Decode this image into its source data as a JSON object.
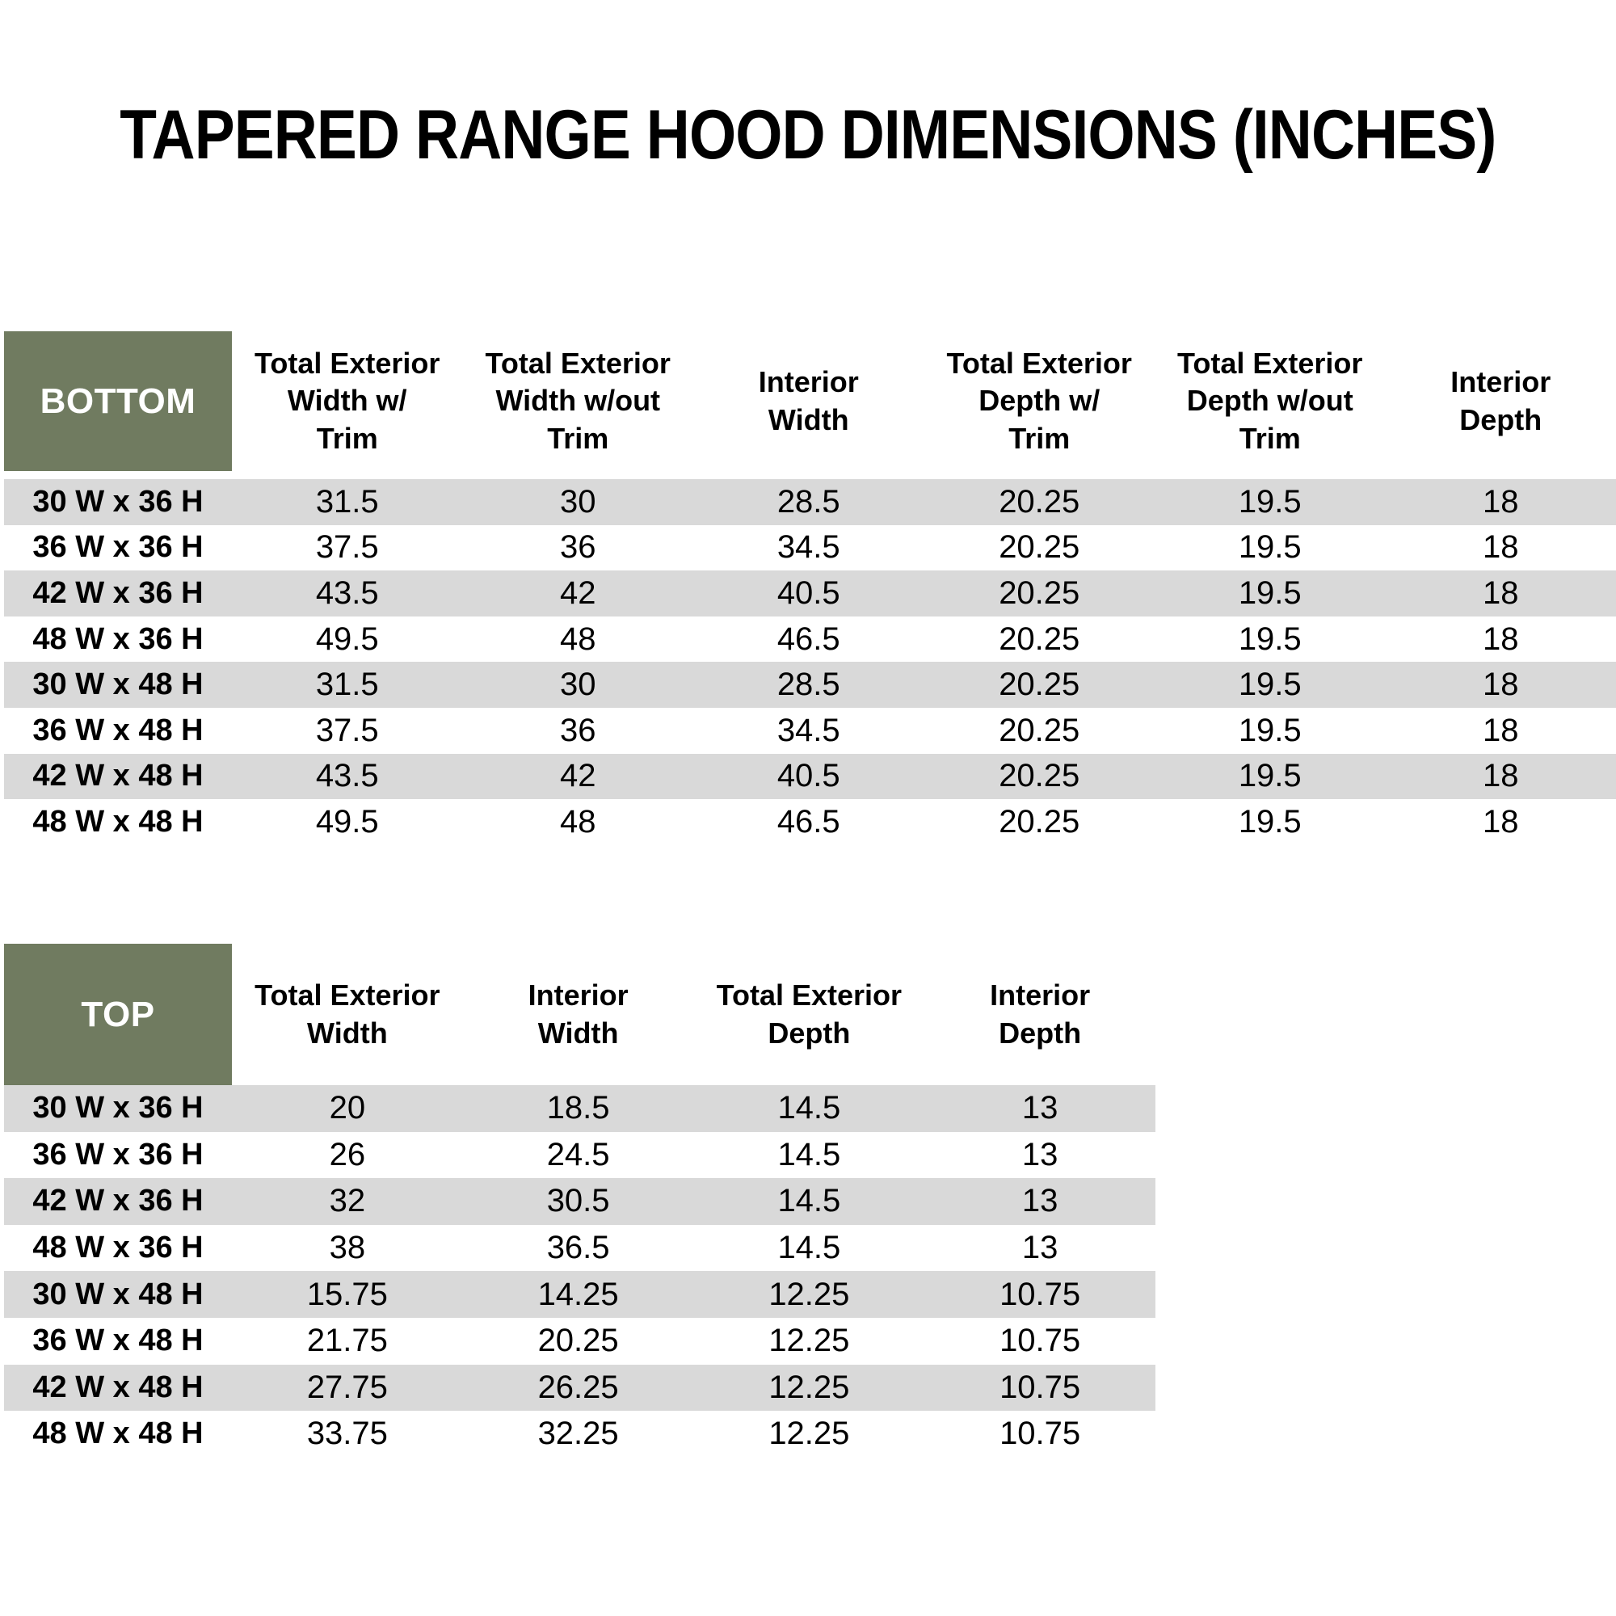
{
  "title": "TAPERED RANGE HOOD DIMENSIONS (INCHES)",
  "colors": {
    "header_green": "#707B60",
    "stripe_gray": "#D9D9D9",
    "header_text": "#FFFFFF",
    "body_text": "#000000"
  },
  "bottom_table": {
    "corner_label": "BOTTOM",
    "columns": [
      "Total Exterior\nWidth w/\nTrim",
      "Total Exterior\nWidth w/out\nTrim",
      "Interior\nWidth",
      "Total Exterior\nDepth w/\nTrim",
      "Total Exterior\nDepth w/out\nTrim",
      "Interior\nDepth"
    ],
    "rows": [
      {
        "label": "30 W x 36 H",
        "values": [
          "31.5",
          "30",
          "28.5",
          "20.25",
          "19.5",
          "18"
        ]
      },
      {
        "label": "36 W x 36 H",
        "values": [
          "37.5",
          "36",
          "34.5",
          "20.25",
          "19.5",
          "18"
        ]
      },
      {
        "label": "42 W x 36 H",
        "values": [
          "43.5",
          "42",
          "40.5",
          "20.25",
          "19.5",
          "18"
        ]
      },
      {
        "label": "48 W x 36 H",
        "values": [
          "49.5",
          "48",
          "46.5",
          "20.25",
          "19.5",
          "18"
        ]
      },
      {
        "label": "30 W x 48 H",
        "values": [
          "31.5",
          "30",
          "28.5",
          "20.25",
          "19.5",
          "18"
        ]
      },
      {
        "label": "36 W x 48 H",
        "values": [
          "37.5",
          "36",
          "34.5",
          "20.25",
          "19.5",
          "18"
        ]
      },
      {
        "label": "42 W x 48 H",
        "values": [
          "43.5",
          "42",
          "40.5",
          "20.25",
          "19.5",
          "18"
        ]
      },
      {
        "label": "48 W x 48 H",
        "values": [
          "49.5",
          "48",
          "46.5",
          "20.25",
          "19.5",
          "18"
        ]
      }
    ]
  },
  "top_table": {
    "corner_label": "TOP",
    "columns": [
      "Total Exterior\nWidth",
      "Interior\nWidth",
      "Total Exterior\nDepth",
      "Interior\nDepth"
    ],
    "rows": [
      {
        "label": "30 W x 36 H",
        "values": [
          "20",
          "18.5",
          "14.5",
          "13"
        ]
      },
      {
        "label": "36 W x 36 H",
        "values": [
          "26",
          "24.5",
          "14.5",
          "13"
        ]
      },
      {
        "label": "42 W x 36 H",
        "values": [
          "32",
          "30.5",
          "14.5",
          "13"
        ]
      },
      {
        "label": "48 W x 36 H",
        "values": [
          "38",
          "36.5",
          "14.5",
          "13"
        ]
      },
      {
        "label": "30 W x 48 H",
        "values": [
          "15.75",
          "14.25",
          "12.25",
          "10.75"
        ]
      },
      {
        "label": "36 W x 48 H",
        "values": [
          "21.75",
          "20.25",
          "12.25",
          "10.75"
        ]
      },
      {
        "label": "42 W x 48 H",
        "values": [
          "27.75",
          "26.25",
          "12.25",
          "10.75"
        ]
      },
      {
        "label": "48 W x 48 H",
        "values": [
          "33.75",
          "32.25",
          "12.25",
          "10.75"
        ]
      }
    ]
  }
}
